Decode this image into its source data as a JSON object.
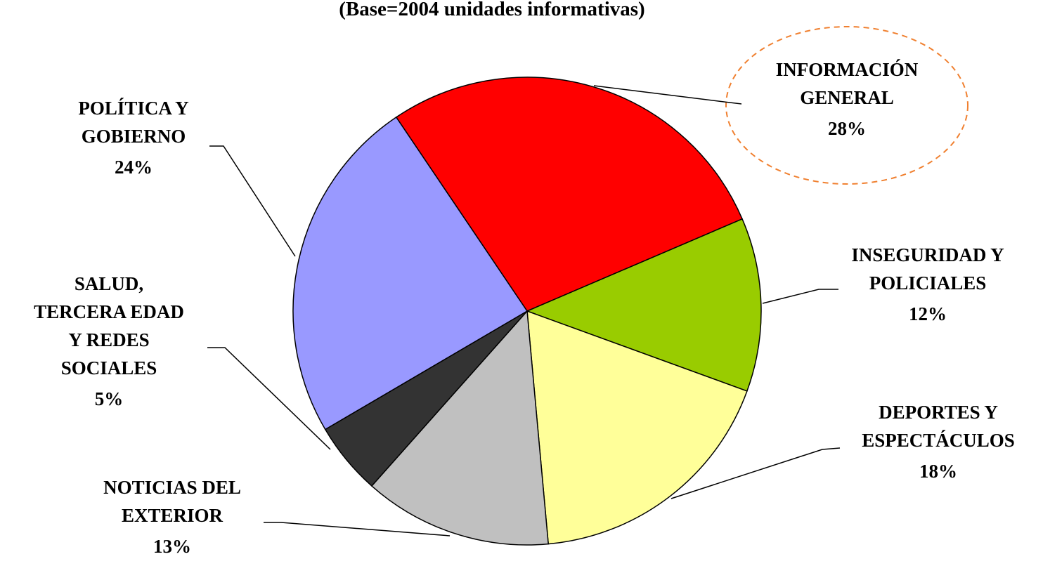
{
  "chart_data": {
    "type": "pie",
    "subtitle": "(Base=2004 unidades informativas)",
    "categories": [
      [
        "INFORMACIÓN",
        "GENERAL"
      ],
      [
        "INSEGURIDAD Y",
        "POLICIALES"
      ],
      [
        "DEPORTES Y",
        "ESPECTÁCULOS"
      ],
      [
        "NOTICIAS DEL",
        "EXTERIOR"
      ],
      [
        "SALUD,",
        "TERCERA EDAD",
        "Y REDES",
        "SOCIALES"
      ],
      [
        "POLÍTICA Y",
        "GOBIERNO"
      ]
    ],
    "values": [
      28,
      12,
      18,
      13,
      5,
      24
    ],
    "value_labels": [
      "28%",
      "12%",
      "18%",
      "13%",
      "5%",
      "24%"
    ],
    "colors": [
      "#ff0000",
      "#99cc00",
      "#ffff99",
      "#c0c0c0",
      "#333333",
      "#9999ff"
    ]
  }
}
